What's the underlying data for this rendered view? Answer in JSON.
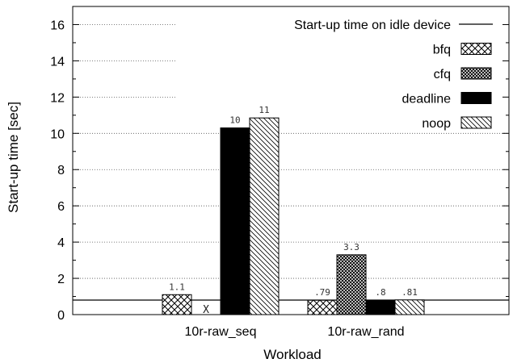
{
  "chart_data": {
    "type": "bar",
    "ylabel": "Start-up time [sec]",
    "xlabel": "Workload",
    "ylim": [
      0,
      17
    ],
    "yticks": [
      0,
      2,
      4,
      6,
      8,
      10,
      12,
      14,
      16
    ],
    "grid": true,
    "legend_placement": "top-right",
    "categories": [
      "10r-raw_seq",
      "10r-raw_rand"
    ],
    "series": [
      {
        "name": "bfq",
        "pattern": "crosshatch",
        "values": [
          1.1,
          0.79
        ],
        "labels": [
          "1.1",
          ".79"
        ]
      },
      {
        "name": "cfq",
        "pattern": "dense-crosshatch",
        "values": [
          null,
          3.3
        ],
        "labels": [
          "X",
          "3.3"
        ]
      },
      {
        "name": "deadline",
        "pattern": "solid",
        "values": [
          10.3,
          0.8
        ],
        "labels": [
          "10",
          ".8"
        ]
      },
      {
        "name": "noop",
        "pattern": "diagonal",
        "values": [
          10.85,
          0.81
        ],
        "labels": [
          "11",
          ".81"
        ]
      }
    ],
    "reference_line": {
      "name": "Start-up time on idle device",
      "value": 0.8
    }
  }
}
